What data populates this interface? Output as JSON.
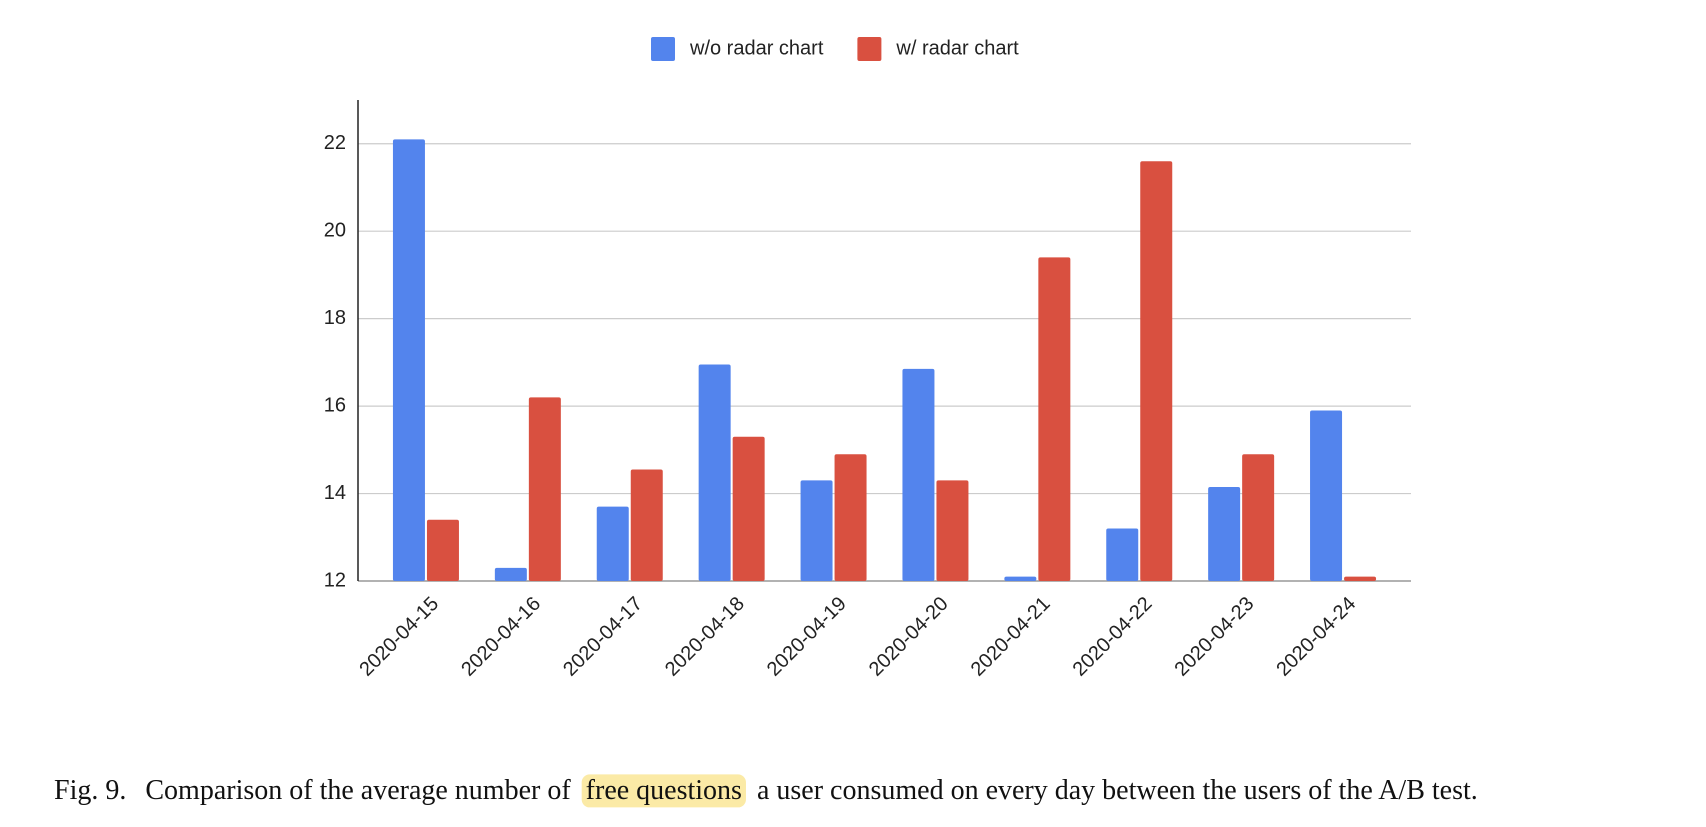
{
  "chart_data": {
    "type": "bar",
    "categories": [
      "2020-04-15",
      "2020-04-16",
      "2020-04-17",
      "2020-04-18",
      "2020-04-19",
      "2020-04-20",
      "2020-04-21",
      "2020-04-22",
      "2020-04-23",
      "2020-04-24"
    ],
    "series": [
      {
        "name": "w/o radar chart",
        "color": "#5384ed",
        "values": [
          22.1,
          12.3,
          13.7,
          16.95,
          14.3,
          16.85,
          12.1,
          13.2,
          14.15,
          15.9
        ]
      },
      {
        "name": "w/ radar chart",
        "color": "#d95040",
        "values": [
          13.4,
          16.2,
          14.55,
          15.3,
          14.9,
          14.3,
          19.4,
          21.6,
          14.9,
          12.1
        ]
      }
    ],
    "ylim": [
      12,
      23
    ],
    "yticks": [
      12,
      14,
      16,
      18,
      20,
      22
    ],
    "grid": true,
    "legend": "top"
  },
  "caption": {
    "label": "Fig. 9.",
    "before": "Comparison of the average number of",
    "highlight": "free questions",
    "after": "a user consumed on every day between the users of the A/B test."
  }
}
